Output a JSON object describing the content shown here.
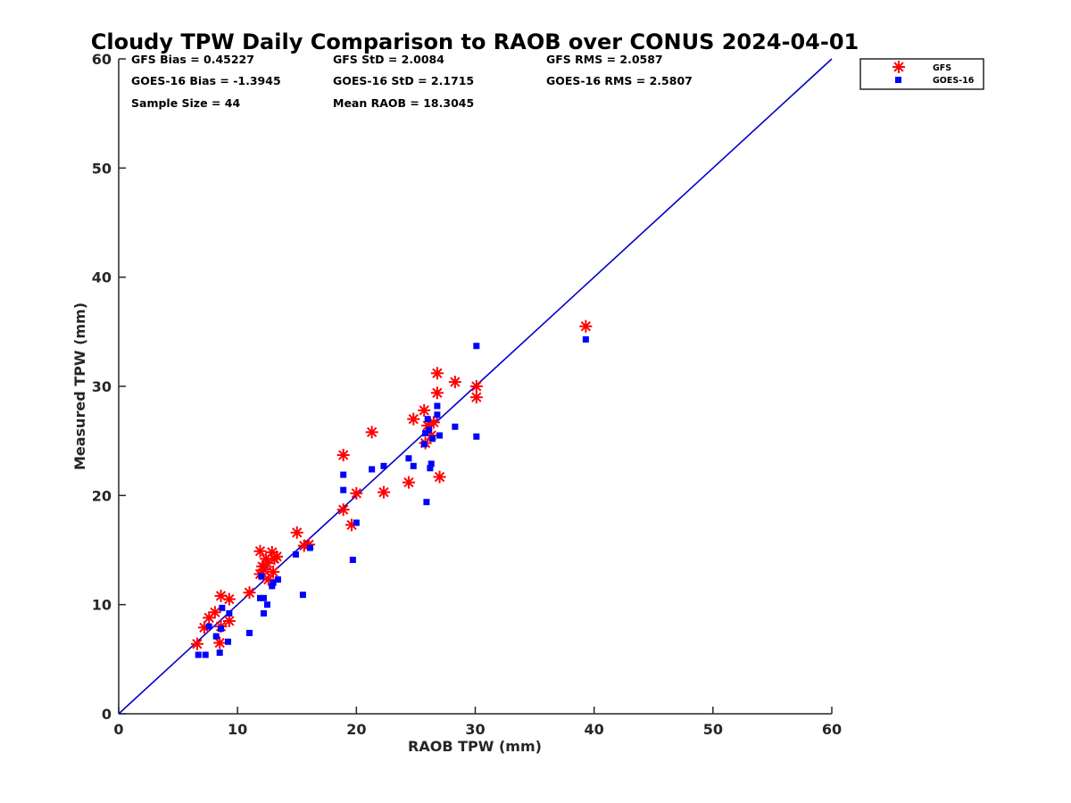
{
  "chart_data": {
    "type": "scatter",
    "title": "Cloudy TPW Daily Comparison to RAOB over CONUS 2024-04-01",
    "xlabel": "RAOB TPW (mm)",
    "ylabel": "Measured TPW (mm)",
    "xlim": [
      0,
      60
    ],
    "ylim": [
      0,
      60
    ],
    "xticks": [
      "0",
      "10",
      "20",
      "30",
      "40",
      "50",
      "60"
    ],
    "yticks": [
      "0",
      "10",
      "20",
      "30",
      "40",
      "50",
      "60"
    ],
    "grid": false,
    "legend_position": "top-right, outside plot",
    "reference_line": {
      "from": [
        0,
        0
      ],
      "to": [
        60,
        60
      ],
      "color": "#0000cc"
    },
    "stats": [
      "GFS Bias = 0.45227",
      "GFS StD = 2.0084",
      "GFS RMS = 2.0587",
      "GOES-16 Bias = -1.3945",
      "GOES-16 StD = 2.1715",
      "GOES-16 RMS = 2.5807",
      "Sample Size = 44",
      "Mean RAOB = 18.3045"
    ],
    "series": [
      {
        "name": "GFS",
        "marker": "asterisk",
        "color": "#ff0000",
        "points": [
          [
            6.6,
            6.4
          ],
          [
            7.2,
            7.9
          ],
          [
            7.6,
            8.8
          ],
          [
            8.1,
            9.3
          ],
          [
            8.6,
            10.8
          ],
          [
            8.5,
            6.5
          ],
          [
            8.6,
            8.0
          ],
          [
            9.3,
            8.5
          ],
          [
            9.3,
            10.5
          ],
          [
            11.0,
            11.1
          ],
          [
            11.9,
            12.8
          ],
          [
            11.9,
            14.9
          ],
          [
            12.2,
            13.2
          ],
          [
            12.4,
            14.2
          ],
          [
            12.5,
            13.8
          ],
          [
            12.9,
            14.8
          ],
          [
            13.1,
            14.2
          ],
          [
            13.3,
            14.4
          ],
          [
            15.0,
            16.6
          ],
          [
            15.6,
            15.4
          ],
          [
            16.0,
            15.5
          ],
          [
            18.9,
            23.7
          ],
          [
            18.9,
            18.7
          ],
          [
            19.6,
            17.3
          ],
          [
            20.0,
            20.2
          ],
          [
            21.3,
            25.8
          ],
          [
            22.3,
            20.3
          ],
          [
            24.4,
            21.2
          ],
          [
            24.8,
            27.0
          ],
          [
            25.7,
            27.8
          ],
          [
            25.8,
            24.8
          ],
          [
            26.0,
            26.4
          ],
          [
            26.3,
            25.5
          ],
          [
            26.5,
            26.7
          ],
          [
            26.8,
            29.4
          ],
          [
            26.8,
            31.2
          ],
          [
            27.0,
            21.7
          ],
          [
            28.3,
            30.4
          ],
          [
            30.1,
            29.0
          ],
          [
            30.1,
            30.0
          ],
          [
            39.3,
            35.5
          ],
          [
            12.6,
            12.3
          ],
          [
            13.0,
            13.0
          ],
          [
            12.1,
            13.5
          ]
        ]
      },
      {
        "name": "GOES-16",
        "marker": "square",
        "color": "#0000ff",
        "points": [
          [
            6.7,
            5.4
          ],
          [
            7.3,
            5.4
          ],
          [
            7.6,
            8.0
          ],
          [
            8.2,
            7.1
          ],
          [
            8.5,
            5.6
          ],
          [
            8.6,
            7.8
          ],
          [
            8.7,
            9.7
          ],
          [
            9.2,
            6.6
          ],
          [
            9.3,
            9.2
          ],
          [
            11.0,
            7.4
          ],
          [
            11.9,
            10.6
          ],
          [
            12.0,
            12.6
          ],
          [
            12.2,
            9.2
          ],
          [
            12.2,
            10.6
          ],
          [
            12.5,
            10.0
          ],
          [
            12.9,
            11.7
          ],
          [
            13.0,
            12.0
          ],
          [
            13.4,
            12.3
          ],
          [
            14.9,
            14.6
          ],
          [
            15.5,
            10.9
          ],
          [
            16.1,
            15.2
          ],
          [
            18.9,
            21.9
          ],
          [
            18.9,
            20.5
          ],
          [
            19.7,
            14.1
          ],
          [
            20.0,
            17.5
          ],
          [
            21.3,
            22.4
          ],
          [
            22.3,
            22.7
          ],
          [
            24.4,
            23.4
          ],
          [
            24.8,
            22.7
          ],
          [
            25.7,
            24.7
          ],
          [
            25.9,
            19.4
          ],
          [
            26.0,
            27.0
          ],
          [
            26.2,
            22.5
          ],
          [
            26.3,
            22.9
          ],
          [
            26.4,
            25.2
          ],
          [
            26.8,
            27.4
          ],
          [
            26.8,
            28.2
          ],
          [
            27.0,
            25.5
          ],
          [
            28.3,
            26.3
          ],
          [
            30.1,
            25.4
          ],
          [
            30.1,
            33.7
          ],
          [
            39.3,
            34.3
          ],
          [
            25.8,
            25.7
          ],
          [
            26.1,
            26.0
          ]
        ]
      }
    ]
  }
}
